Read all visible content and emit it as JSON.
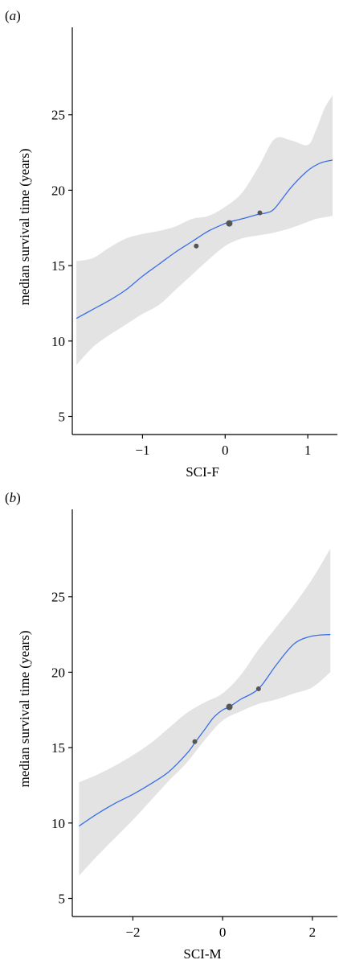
{
  "colors": {
    "band": "#e3e3e3",
    "line": "#3a6ee8",
    "point": "#555555",
    "axis": "#000000"
  },
  "chart_data": [
    {
      "panel_label": "a",
      "type": "line",
      "title": "",
      "xlabel": "SCI-F",
      "ylabel": "median survival time (years)",
      "xlim": [
        -1.85,
        1.3
      ],
      "ylim": [
        3.8,
        30.8
      ],
      "xticks": [
        -1,
        0,
        1
      ],
      "xtick_labels": [
        "−1",
        "0",
        "1"
      ],
      "yticks": [
        5,
        10,
        15,
        20,
        25
      ],
      "ytick_labels": [
        "5",
        "10",
        "15",
        "20",
        "25"
      ],
      "grid": false,
      "series": [
        {
          "kind": "ribbon",
          "x": [
            -1.8,
            -1.6,
            -1.4,
            -1.2,
            -1.0,
            -0.8,
            -0.6,
            -0.4,
            -0.2,
            0.0,
            0.2,
            0.4,
            0.6,
            0.8,
            1.0,
            1.1,
            1.2,
            1.3
          ],
          "lower": [
            8.4,
            9.6,
            10.4,
            11.1,
            11.8,
            12.4,
            13.4,
            14.4,
            15.4,
            16.3,
            16.8,
            17.0,
            17.2,
            17.5,
            17.9,
            18.1,
            18.2,
            18.3
          ],
          "upper": [
            15.3,
            15.5,
            16.2,
            16.8,
            17.1,
            17.3,
            17.6,
            18.1,
            18.3,
            18.9,
            19.8,
            21.5,
            23.4,
            23.3,
            23.0,
            24.0,
            25.4,
            26.3
          ]
        },
        {
          "kind": "line",
          "x": [
            -1.8,
            -1.6,
            -1.4,
            -1.2,
            -1.0,
            -0.8,
            -0.6,
            -0.4,
            -0.2,
            0.0,
            0.05,
            0.2,
            0.4,
            0.5,
            0.6,
            0.8,
            1.0,
            1.15,
            1.3
          ],
          "y": [
            11.5,
            12.1,
            12.7,
            13.4,
            14.3,
            15.1,
            15.9,
            16.6,
            17.3,
            17.8,
            17.9,
            18.1,
            18.4,
            18.5,
            18.8,
            20.2,
            21.3,
            21.8,
            22.0
          ]
        },
        {
          "kind": "points",
          "x": [
            -0.35,
            0.05,
            0.42
          ],
          "y": [
            16.3,
            17.8,
            18.5
          ],
          "size": [
            3,
            4,
            3
          ]
        }
      ]
    },
    {
      "panel_label": "b",
      "type": "line",
      "title": "",
      "xlabel": "SCI-M",
      "ylabel": "median survival time (years)",
      "xlim": [
        -3.35,
        2.45
      ],
      "ylim": [
        3.8,
        30.8
      ],
      "xticks": [
        -2,
        0,
        2
      ],
      "xtick_labels": [
        "−2",
        "0",
        "2"
      ],
      "yticks": [
        5,
        10,
        15,
        20,
        25
      ],
      "ytick_labels": [
        "5",
        "10",
        "15",
        "20",
        "25"
      ],
      "grid": false,
      "series": [
        {
          "kind": "ribbon",
          "x": [
            -3.2,
            -2.8,
            -2.4,
            -2.0,
            -1.6,
            -1.2,
            -0.8,
            -0.4,
            0.0,
            0.4,
            0.8,
            1.2,
            1.6,
            2.0,
            2.4
          ],
          "lower": [
            6.5,
            7.8,
            9.0,
            10.2,
            11.5,
            12.8,
            14.0,
            15.5,
            16.8,
            17.4,
            17.9,
            18.2,
            18.6,
            19.0,
            20.0
          ],
          "upper": [
            12.7,
            13.2,
            13.8,
            14.5,
            15.3,
            16.3,
            17.3,
            18.0,
            18.6,
            19.8,
            21.5,
            23.0,
            24.5,
            26.2,
            28.2
          ]
        },
        {
          "kind": "line",
          "x": [
            -3.2,
            -2.8,
            -2.4,
            -2.0,
            -1.6,
            -1.2,
            -0.8,
            -0.6,
            -0.4,
            -0.2,
            0.0,
            0.15,
            0.4,
            0.8,
            1.2,
            1.6,
            2.0,
            2.4
          ],
          "y": [
            9.8,
            10.6,
            11.3,
            11.9,
            12.6,
            13.4,
            14.6,
            15.4,
            16.2,
            17.0,
            17.5,
            17.7,
            18.2,
            18.9,
            20.5,
            21.9,
            22.4,
            22.5
          ]
        },
        {
          "kind": "points",
          "x": [
            -0.62,
            0.15,
            0.8
          ],
          "y": [
            15.4,
            17.7,
            18.9
          ],
          "size": [
            3,
            4,
            3
          ]
        }
      ]
    }
  ]
}
